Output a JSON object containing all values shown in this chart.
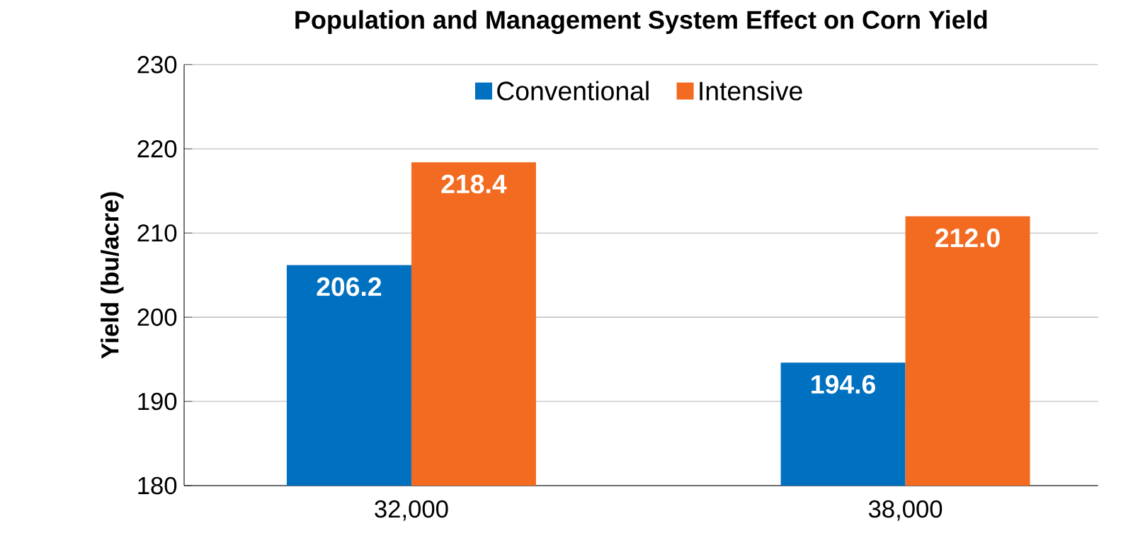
{
  "chart_data": {
    "type": "bar",
    "title": "Population and Management System Effect on Corn Yield",
    "ylabel": "Yield (bu/acre)",
    "categories": [
      "32,000",
      "38,000"
    ],
    "series": [
      {
        "name": "Conventional",
        "color": "#0070c0",
        "values": [
          206.2,
          194.6
        ],
        "value_labels": [
          "206.2",
          "194.6"
        ]
      },
      {
        "name": "Intensive",
        "color": "#f26b21",
        "values": [
          218.4,
          212.0
        ],
        "value_labels": [
          "218.4",
          "212.0"
        ]
      }
    ],
    "ylim": [
      180,
      230
    ],
    "yticks": [
      180,
      190,
      200,
      210,
      220,
      230
    ],
    "grid": "y",
    "legend": "top"
  }
}
